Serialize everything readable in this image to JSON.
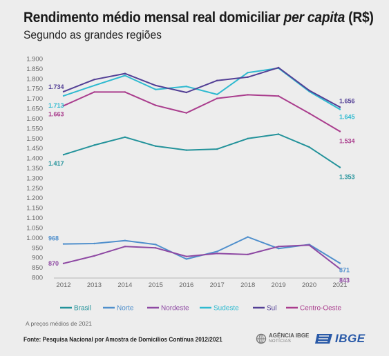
{
  "header": {
    "title_main": "Rendimento médio mensal real domiciliar ",
    "title_italic": "per capita",
    "title_unit": " (R$)",
    "subtitle": "Segundo as grandes regiões"
  },
  "footer": {
    "note": "A preços médios de 2021",
    "source": "Fonte: Pesquisa Nacional por Amostra de Domicílios Contínua 2012/2021",
    "agencia_line1": "AGÊNCIA IBGE",
    "agencia_line2": "NOTÍCIAS",
    "ibge_logo_text": "IBGE"
  },
  "chart_data": {
    "type": "line",
    "title": "Rendimento médio mensal real domiciliar per capita (R$)",
    "subtitle": "Segundo as grandes regiões",
    "x": [
      "2012",
      "2013",
      "2014",
      "2015",
      "2016",
      "2017",
      "2018",
      "2019",
      "2020",
      "2021"
    ],
    "ylim": [
      800,
      1900
    ],
    "yticks": [
      800,
      850,
      900,
      950,
      1000,
      1050,
      1100,
      1150,
      1200,
      1250,
      1300,
      1350,
      1400,
      1450,
      1500,
      1550,
      1600,
      1650,
      1700,
      1750,
      1800,
      1850,
      1900
    ],
    "ytick_labels": [
      "800",
      "850",
      "900",
      "950",
      "1.000",
      "1.050",
      "1.100",
      "1.150",
      "1.200",
      "1.250",
      "1.300",
      "1.350",
      "1.400",
      "1.450",
      "1.500",
      "1.550",
      "1.600",
      "1.650",
      "1.700",
      "1.750",
      "1.800",
      "1.850",
      "1.900"
    ],
    "grid": false,
    "legend_position": "bottom",
    "series": [
      {
        "name": "Brasil",
        "color": "#22929a",
        "values": [
          1417,
          1465,
          1505,
          1460,
          1440,
          1445,
          1498,
          1520,
          1455,
          1353
        ],
        "labels": [
          {
            "index": 0,
            "text": "1.417",
            "side": "left"
          },
          {
            "index": 9,
            "text": "1.353",
            "side": "right"
          }
        ]
      },
      {
        "name": "Norte",
        "color": "#4f8fcc",
        "values": [
          968,
          970,
          985,
          965,
          892,
          930,
          1003,
          945,
          965,
          871
        ],
        "labels": [
          {
            "index": 0,
            "text": "968",
            "side": "left"
          },
          {
            "index": 9,
            "text": "871",
            "side": "right"
          }
        ]
      },
      {
        "name": "Nordeste",
        "color": "#8e49a3",
        "values": [
          870,
          908,
          955,
          948,
          905,
          920,
          915,
          955,
          962,
          843
        ],
        "labels": [
          {
            "index": 0,
            "text": "870",
            "side": "left"
          },
          {
            "index": 9,
            "text": "843",
            "side": "right"
          }
        ]
      },
      {
        "name": "Sudeste",
        "color": "#2fbad0",
        "values": [
          1713,
          1765,
          1815,
          1745,
          1760,
          1720,
          1830,
          1852,
          1735,
          1645
        ],
        "labels": [
          {
            "index": 0,
            "text": "1.713",
            "side": "left"
          },
          {
            "index": 9,
            "text": "1.645",
            "side": "right"
          }
        ]
      },
      {
        "name": "Sul",
        "color": "#533f95",
        "values": [
          1734,
          1795,
          1825,
          1765,
          1730,
          1790,
          1807,
          1855,
          1740,
          1656
        ],
        "labels": [
          {
            "index": 0,
            "text": "1.734",
            "side": "left"
          },
          {
            "index": 9,
            "text": "1.656",
            "side": "right"
          }
        ]
      },
      {
        "name": "Centro-Oeste",
        "color": "#aa3d8d",
        "values": [
          1663,
          1732,
          1732,
          1665,
          1627,
          1700,
          1718,
          1712,
          1625,
          1534
        ],
        "labels": [
          {
            "index": 0,
            "text": "1.663",
            "side": "left"
          },
          {
            "index": 9,
            "text": "1.534",
            "side": "right"
          }
        ]
      }
    ]
  }
}
